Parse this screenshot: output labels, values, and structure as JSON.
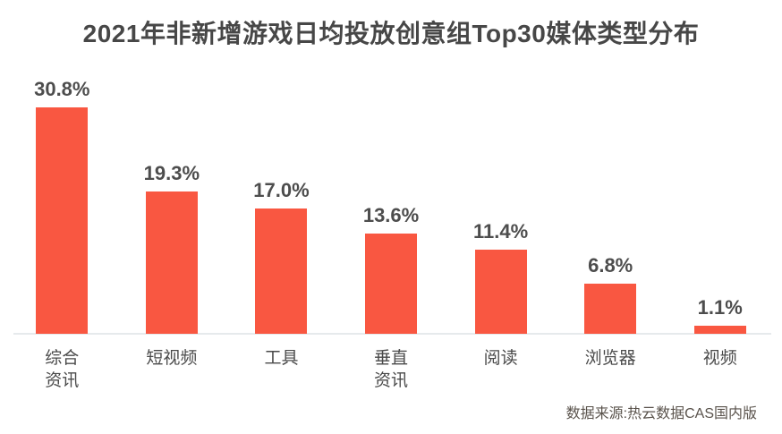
{
  "chart_data": {
    "type": "bar",
    "title": "2021年非新增游戏日均投放创意组Top30媒体类型分布",
    "categories": [
      "综合资讯",
      "短视频",
      "工具",
      "垂直资讯",
      "阅读",
      "浏览器",
      "视频"
    ],
    "values": [
      30.8,
      19.3,
      17.0,
      13.6,
      11.4,
      6.8,
      1.1
    ],
    "unit": "%",
    "data_labels_visible": true,
    "xlabel": "",
    "ylabel": "",
    "ylim": [
      0,
      32
    ],
    "grid": false,
    "axes": "x-baseline-only",
    "legend": "none",
    "bar_color": "#F95741",
    "items": [
      {
        "label_lines": [
          "综合",
          "资讯"
        ],
        "value": 30.8,
        "display": "30.8%"
      },
      {
        "label_lines": [
          "短视频"
        ],
        "value": 19.3,
        "display": "19.3%"
      },
      {
        "label_lines": [
          "工具"
        ],
        "value": 17.0,
        "display": "17.0%"
      },
      {
        "label_lines": [
          "垂直",
          "资讯"
        ],
        "value": 13.6,
        "display": "13.6%"
      },
      {
        "label_lines": [
          "阅读"
        ],
        "value": 11.4,
        "display": "11.4%"
      },
      {
        "label_lines": [
          "浏览器"
        ],
        "value": 6.8,
        "display": "6.8%"
      },
      {
        "label_lines": [
          "视频"
        ],
        "value": 1.1,
        "display": "1.1%"
      }
    ],
    "source": "数据来源:热云数据CAS国内版"
  }
}
